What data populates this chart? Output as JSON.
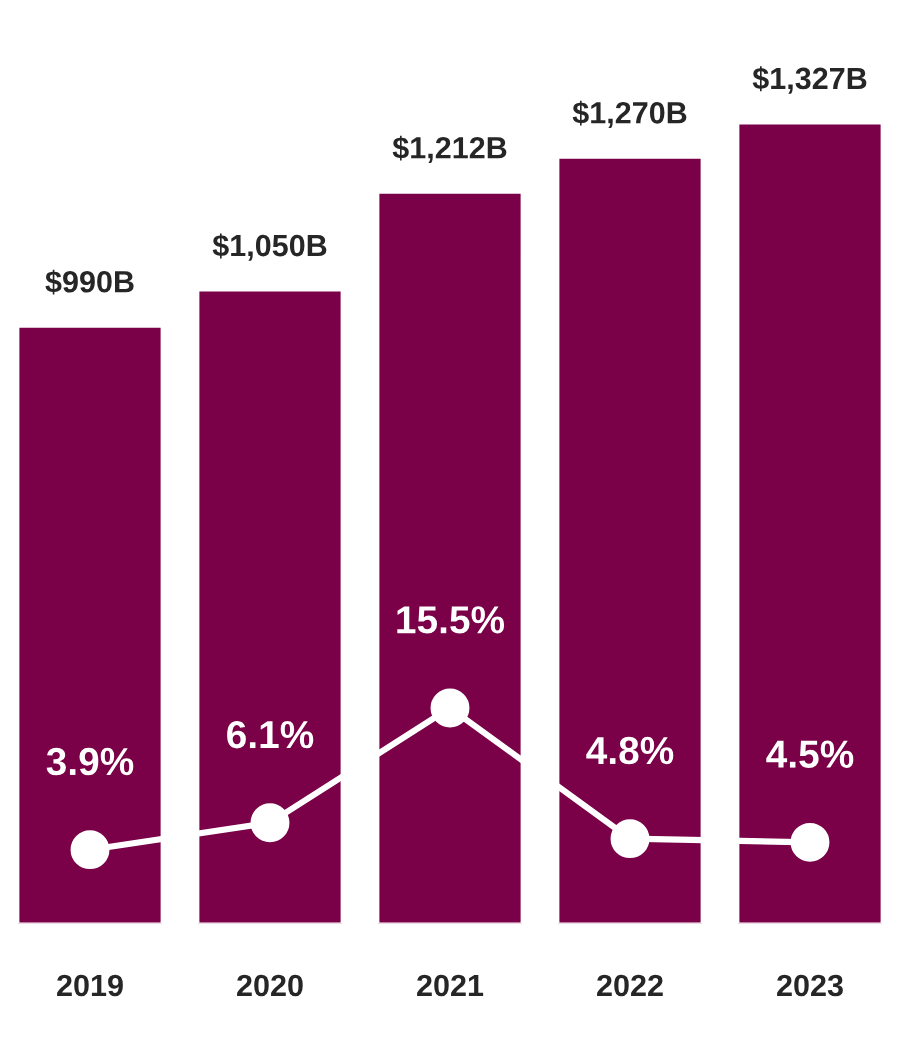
{
  "chart_data": {
    "type": "bar",
    "categories": [
      "2019",
      "2020",
      "2021",
      "2022",
      "2023"
    ],
    "tick_labels": "x",
    "grid": false,
    "legend": false,
    "series": [
      {
        "color": "#7a0047",
        "values": [
          990,
          1050,
          1212,
          1270,
          1327
        ],
        "value_labels": [
          "$990B",
          "$1,050B",
          "$1,212B",
          "$1,270B",
          "$1,327B"
        ]
      },
      {
        "type": "line",
        "axis": "y2",
        "color": "#ffffff",
        "marker": "circle",
        "line_style": "solid",
        "values": [
          3.9,
          6.1,
          15.5,
          4.8,
          4.5
        ],
        "value_labels": [
          "3.9%",
          "6.1%",
          "15.5%",
          "4.8%",
          "4.5%"
        ]
      }
    ]
  }
}
